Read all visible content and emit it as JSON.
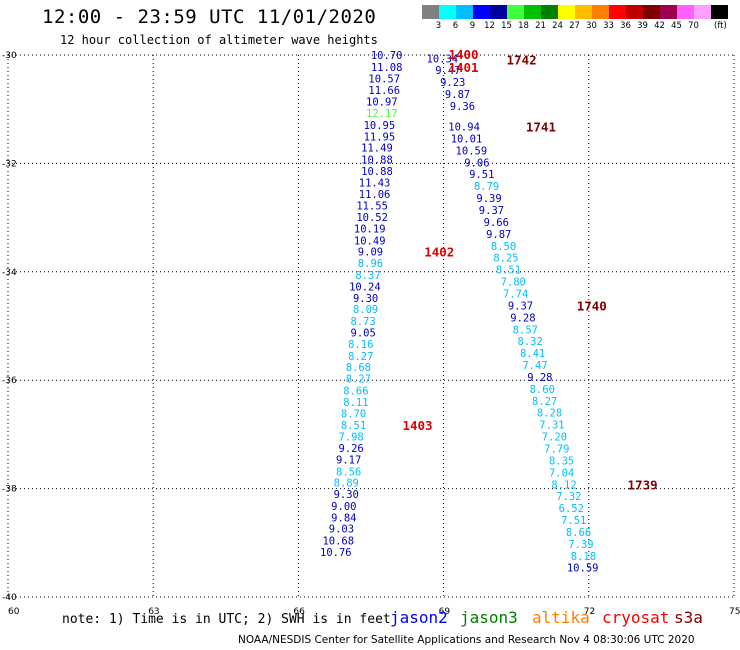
{
  "header": {
    "title": "12:00 - 23:59 UTC 11/01/2020",
    "subtitle": "12 hour collection of altimeter wave heights"
  },
  "legend": {
    "colors": [
      "#808080",
      "#00ffff",
      "#00bfff",
      "#0000ff",
      "#0000a0",
      "#40ff40",
      "#00c000",
      "#008000",
      "#ffff00",
      "#ffbf00",
      "#ff8000",
      "#ff0000",
      "#c00000",
      "#800000",
      "#a00050",
      "#ff60ff",
      "#ffa0ff",
      "#000000"
    ],
    "labels": [
      "3",
      "6",
      "9",
      "12",
      "15",
      "18",
      "21",
      "24",
      "27",
      "30",
      "33",
      "36",
      "39",
      "42",
      "45",
      "70"
    ],
    "unit": "(ft)"
  },
  "chart_data": {
    "type": "scatter",
    "xlim": [
      60,
      75
    ],
    "ylim": [
      -40,
      -30
    ],
    "x_ticks": [
      60,
      63,
      66,
      69,
      72,
      75
    ],
    "y_ticks": [
      -30,
      -32,
      -34,
      -36,
      -38,
      -40
    ],
    "x_tick_labels": [
      "60",
      "63",
      "66",
      "69",
      "72",
      "75"
    ],
    "y_tick_labels": [
      "-30",
      "-32",
      "-34",
      "-36",
      "-38",
      "-40"
    ],
    "grid": true,
    "tracks": [
      {
        "satellite": "jason2",
        "points": [
          {
            "x": 68.15,
            "y": -30.0,
            "v": "10.70",
            "c": "#0000c0"
          },
          {
            "x": 68.15,
            "y": -30.22,
            "v": "11.08",
            "c": "#0000c0"
          },
          {
            "x": 68.1,
            "y": -30.43,
            "v": "10.57",
            "c": "#0000c0"
          },
          {
            "x": 68.1,
            "y": -30.65,
            "v": "11.66",
            "c": "#0000c0"
          },
          {
            "x": 68.05,
            "y": -30.86,
            "v": "10.97",
            "c": "#0000c0"
          },
          {
            "x": 68.05,
            "y": -31.07,
            "v": "12.17",
            "c": "#40ff40"
          },
          {
            "x": 68.0,
            "y": -31.29,
            "v": "10.95",
            "c": "#0000c0"
          },
          {
            "x": 68.0,
            "y": -31.5,
            "v": "11.95",
            "c": "#0000c0"
          },
          {
            "x": 67.95,
            "y": -31.71,
            "v": "11.49",
            "c": "#0000c0"
          },
          {
            "x": 67.95,
            "y": -31.93,
            "v": "10.88",
            "c": "#0000c0"
          },
          {
            "x": 67.95,
            "y": -32.14,
            "v": "10.88",
            "c": "#0000c0"
          },
          {
            "x": 67.9,
            "y": -32.35,
            "v": "11.43",
            "c": "#0000c0"
          },
          {
            "x": 67.9,
            "y": -32.56,
            "v": "11.06",
            "c": "#0000c0"
          },
          {
            "x": 67.85,
            "y": -32.78,
            "v": "11.55",
            "c": "#0000c0"
          },
          {
            "x": 67.85,
            "y": -32.99,
            "v": "10.52",
            "c": "#0000c0"
          },
          {
            "x": 67.8,
            "y": -33.2,
            "v": "10.19",
            "c": "#0000c0"
          },
          {
            "x": 67.8,
            "y": -33.42,
            "v": "10.49",
            "c": "#0000c0"
          },
          {
            "x": 67.75,
            "y": -33.63,
            "v": "9.09",
            "c": "#0000c0"
          },
          {
            "x": 67.75,
            "y": -33.84,
            "v": "8.96",
            "c": "#00bfff"
          },
          {
            "x": 67.7,
            "y": -34.06,
            "v": "8.37",
            "c": "#00bfff"
          },
          {
            "x": 67.7,
            "y": -34.27,
            "v": "10.24",
            "c": "#0000c0"
          },
          {
            "x": 67.65,
            "y": -34.48,
            "v": "9.30",
            "c": "#0000c0"
          },
          {
            "x": 67.65,
            "y": -34.69,
            "v": "8.09",
            "c": "#00bfff"
          },
          {
            "x": 67.6,
            "y": -34.91,
            "v": "8.73",
            "c": "#00bfff"
          },
          {
            "x": 67.6,
            "y": -35.12,
            "v": "9.05",
            "c": "#0000c0"
          },
          {
            "x": 67.55,
            "y": -35.33,
            "v": "8.16",
            "c": "#00bfff"
          },
          {
            "x": 67.55,
            "y": -35.55,
            "v": "8.27",
            "c": "#00bfff"
          },
          {
            "x": 67.5,
            "y": -35.76,
            "v": "8.68",
            "c": "#00bfff"
          },
          {
            "x": 67.5,
            "y": -35.97,
            "v": "8.27",
            "c": "#00bfff"
          },
          {
            "x": 67.45,
            "y": -36.19,
            "v": "8.66",
            "c": "#00bfff"
          },
          {
            "x": 67.45,
            "y": -36.4,
            "v": "8.11",
            "c": "#00bfff"
          },
          {
            "x": 67.4,
            "y": -36.61,
            "v": "8.70",
            "c": "#00bfff"
          },
          {
            "x": 67.4,
            "y": -36.83,
            "v": "8.51",
            "c": "#00bfff"
          },
          {
            "x": 67.35,
            "y": -37.04,
            "v": "7.98",
            "c": "#00bfff"
          },
          {
            "x": 67.35,
            "y": -37.25,
            "v": "9.26",
            "c": "#0000c0"
          },
          {
            "x": 67.3,
            "y": -37.46,
            "v": "9.17",
            "c": "#0000c0"
          },
          {
            "x": 67.3,
            "y": -37.68,
            "v": "8.56",
            "c": "#00bfff"
          },
          {
            "x": 67.25,
            "y": -37.89,
            "v": "8.89",
            "c": "#00bfff"
          },
          {
            "x": 67.25,
            "y": -38.1,
            "v": "9.30",
            "c": "#0000c0"
          },
          {
            "x": 67.2,
            "y": -38.32,
            "v": "9.00",
            "c": "#0000c0"
          },
          {
            "x": 67.2,
            "y": -38.53,
            "v": "9.84",
            "c": "#0000c0"
          },
          {
            "x": 67.15,
            "y": -38.74,
            "v": "9.03",
            "c": "#0000c0"
          },
          {
            "x": 67.15,
            "y": -38.96,
            "v": "10.68",
            "c": "#0000c0"
          },
          {
            "x": 67.1,
            "y": -39.17,
            "v": "10.76",
            "c": "#0000c0"
          }
        ]
      },
      {
        "satellite": "jason2",
        "points": [
          {
            "x": 69.3,
            "y": -30.06,
            "v": "10.34",
            "c": "#0000c0"
          },
          {
            "x": 69.35,
            "y": -30.28,
            "v": "9.47",
            "c": "#0000c0"
          },
          {
            "x": 69.45,
            "y": -30.5,
            "v": "9.23",
            "c": "#0000c0"
          },
          {
            "x": 69.55,
            "y": -30.72,
            "v": "9.87",
            "c": "#0000c0"
          },
          {
            "x": 69.65,
            "y": -30.94,
            "v": "9.36",
            "c": "#0000c0"
          },
          {
            "x": 69.75,
            "y": -31.32,
            "v": "10.94",
            "c": "#0000c0"
          },
          {
            "x": 69.8,
            "y": -31.54,
            "v": "10.01",
            "c": "#0000c0"
          },
          {
            "x": 69.9,
            "y": -31.76,
            "v": "10.59",
            "c": "#0000c0"
          },
          {
            "x": 69.95,
            "y": -31.98,
            "v": "9.06",
            "c": "#0000c0"
          },
          {
            "x": 70.05,
            "y": -32.2,
            "v": "9.51",
            "c": "#0000c0"
          },
          {
            "x": 70.15,
            "y": -32.42,
            "v": "8.79",
            "c": "#00bfff"
          },
          {
            "x": 70.2,
            "y": -32.64,
            "v": "9.39",
            "c": "#0000c0"
          },
          {
            "x": 70.25,
            "y": -32.86,
            "v": "9.37",
            "c": "#0000c0"
          },
          {
            "x": 70.35,
            "y": -33.08,
            "v": "9.66",
            "c": "#0000c0"
          },
          {
            "x": 70.4,
            "y": -33.3,
            "v": "9.87",
            "c": "#0000c0"
          },
          {
            "x": 70.5,
            "y": -33.52,
            "v": "8.50",
            "c": "#00bfff"
          },
          {
            "x": 70.55,
            "y": -33.74,
            "v": "8.25",
            "c": "#00bfff"
          },
          {
            "x": 70.6,
            "y": -33.96,
            "v": "8.51",
            "c": "#00bfff"
          },
          {
            "x": 70.7,
            "y": -34.18,
            "v": "7.80",
            "c": "#00bfff"
          },
          {
            "x": 70.75,
            "y": -34.4,
            "v": "7.74",
            "c": "#00bfff"
          },
          {
            "x": 70.85,
            "y": -34.62,
            "v": "9.37",
            "c": "#0000c0"
          },
          {
            "x": 70.9,
            "y": -34.84,
            "v": "9.28",
            "c": "#0000c0"
          },
          {
            "x": 70.95,
            "y": -35.06,
            "v": "8.57",
            "c": "#00bfff"
          },
          {
            "x": 71.05,
            "y": -35.28,
            "v": "8.32",
            "c": "#00bfff"
          },
          {
            "x": 71.1,
            "y": -35.5,
            "v": "8.41",
            "c": "#00bfff"
          },
          {
            "x": 71.15,
            "y": -35.72,
            "v": "7.47",
            "c": "#00bfff"
          },
          {
            "x": 71.25,
            "y": -35.94,
            "v": "9.28",
            "c": "#0000c0"
          },
          {
            "x": 71.3,
            "y": -36.16,
            "v": "8.60",
            "c": "#00bfff"
          },
          {
            "x": 71.35,
            "y": -36.38,
            "v": "8.27",
            "c": "#00bfff"
          },
          {
            "x": 71.45,
            "y": -36.6,
            "v": "8.28",
            "c": "#00bfff"
          },
          {
            "x": 71.5,
            "y": -36.82,
            "v": "7.31",
            "c": "#00bfff"
          },
          {
            "x": 71.55,
            "y": -37.04,
            "v": "7.20",
            "c": "#00bfff"
          },
          {
            "x": 71.6,
            "y": -37.26,
            "v": "7.79",
            "c": "#00bfff"
          },
          {
            "x": 71.7,
            "y": -37.48,
            "v": "8.35",
            "c": "#00bfff"
          },
          {
            "x": 71.7,
            "y": -37.7,
            "v": "7.04",
            "c": "#00bfff"
          },
          {
            "x": 71.75,
            "y": -37.92,
            "v": "8.12",
            "c": "#00bfff"
          },
          {
            "x": 71.85,
            "y": -38.14,
            "v": "7.32",
            "c": "#00bfff"
          },
          {
            "x": 71.9,
            "y": -38.36,
            "v": "6.52",
            "c": "#00bfff"
          },
          {
            "x": 71.95,
            "y": -38.58,
            "v": "7.51",
            "c": "#00bfff"
          },
          {
            "x": 72.05,
            "y": -38.8,
            "v": "8.66",
            "c": "#00bfff"
          },
          {
            "x": 72.1,
            "y": -39.02,
            "v": "7.39",
            "c": "#00bfff"
          },
          {
            "x": 72.15,
            "y": -39.24,
            "v": "8.18",
            "c": "#00bfff"
          },
          {
            "x": 72.2,
            "y": -39.46,
            "v": "10.59",
            "c": "#0000c0"
          }
        ]
      }
    ],
    "time_labels": [
      {
        "text": "1400",
        "x": 69.1,
        "y": -29.98,
        "c": "#e00000"
      },
      {
        "text": "1401",
        "x": 69.1,
        "y": -30.22,
        "c": "#e00000"
      },
      {
        "text": "1742",
        "x": 70.3,
        "y": -30.08,
        "c": "#800000"
      },
      {
        "text": "1741",
        "x": 70.7,
        "y": -31.32,
        "c": "#800000"
      },
      {
        "text": "1402",
        "x": 68.6,
        "y": -33.63,
        "c": "#e00000"
      },
      {
        "text": "1740",
        "x": 71.75,
        "y": -34.62,
        "c": "#800000"
      },
      {
        "text": "1403",
        "x": 68.15,
        "y": -36.83,
        "c": "#e00000"
      },
      {
        "text": "1739",
        "x": 72.8,
        "y": -37.92,
        "c": "#800000"
      }
    ]
  },
  "satellites": [
    {
      "name": "jason2",
      "color": "#0000ff"
    },
    {
      "name": "jason3",
      "color": "#008000"
    },
    {
      "name": "altika",
      "color": "#ff8000"
    },
    {
      "name": "cryosat",
      "color": "#ff0000"
    },
    {
      "name": "s3a",
      "color": "#800000"
    }
  ],
  "note": "note: 1) Time is in UTC; 2) SWH is in feet",
  "footer": "NOAA/NESDIS Center for Satellite Applications and Research   Nov  4 08:30:06 UTC 2020"
}
